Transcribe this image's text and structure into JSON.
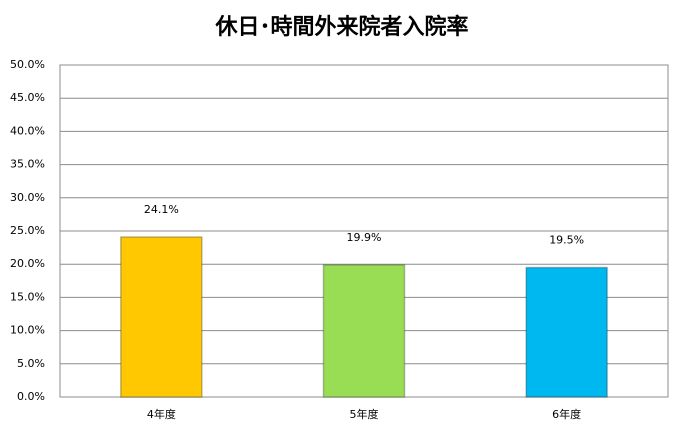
{
  "chart_data": {
    "type": "bar",
    "title": "休日･時間外来院者入院率",
    "categories": [
      "4年度",
      "5年度",
      "6年度"
    ],
    "values": [
      24.1,
      19.9,
      19.5
    ],
    "value_labels": [
      "24.1%",
      "19.9%",
      "19.5%"
    ],
    "colors": [
      "#ffc800",
      "#99dd55",
      "#00b8f0"
    ],
    "ylim": [
      0,
      50
    ],
    "yticks": [
      {
        "value": 0,
        "label": "0.0%"
      },
      {
        "value": 5,
        "label": "5.0%"
      },
      {
        "value": 10,
        "label": "10.0%"
      },
      {
        "value": 15,
        "label": "15.0%"
      },
      {
        "value": 20,
        "label": "20.0%"
      },
      {
        "value": 25,
        "label": "25.0%"
      },
      {
        "value": 30,
        "label": "30.0%"
      },
      {
        "value": 35,
        "label": "35.0%"
      },
      {
        "value": 40,
        "label": "40.0%"
      },
      {
        "value": 45,
        "label": "45.0%"
      },
      {
        "value": 50,
        "label": "50.0%"
      }
    ],
    "grid": true
  }
}
